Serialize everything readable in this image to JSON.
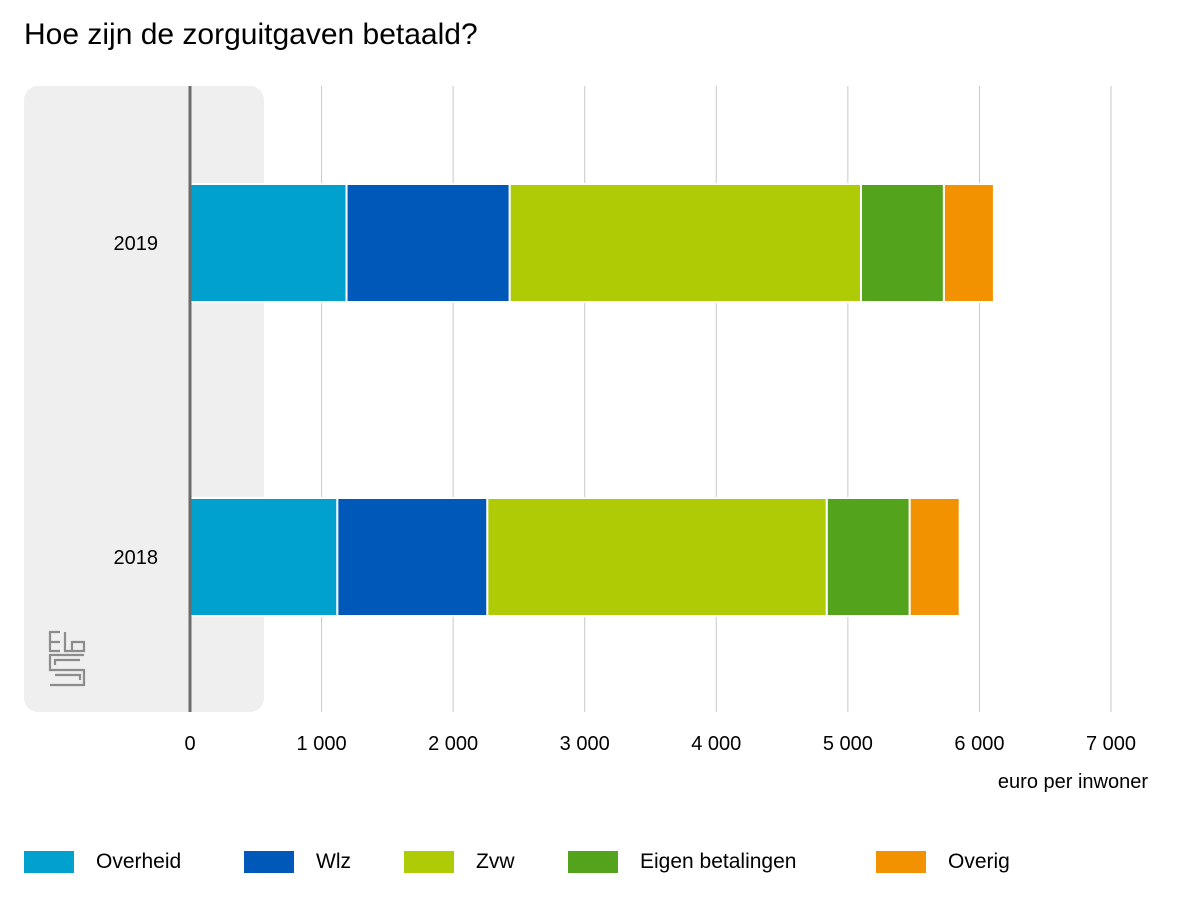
{
  "chart_data": {
    "type": "bar",
    "orientation": "horizontal",
    "stacked": true,
    "title": "Hoe zijn de zorguitgaven betaald?",
    "xlabel": "euro per inwoner",
    "ylabel": "",
    "xlim": [
      0,
      7000
    ],
    "xticks": [
      0,
      1000,
      2000,
      3000,
      4000,
      5000,
      6000,
      7000
    ],
    "xtick_labels": [
      "0",
      "1 000",
      "2 000",
      "3 000",
      "4 000",
      "5 000",
      "6 000",
      "7 000"
    ],
    "grid": true,
    "legend_position": "bottom",
    "categories": [
      "2019",
      "2018"
    ],
    "series": [
      {
        "name": "Overheid",
        "color": "#00a1cd",
        "values": [
          1190,
          1120
        ]
      },
      {
        "name": "Wlz",
        "color": "#0058b8",
        "values": [
          1240,
          1140
        ]
      },
      {
        "name": "Zvw",
        "color": "#afcb05",
        "values": [
          2670,
          2580
        ]
      },
      {
        "name": "Eigen betalingen",
        "color": "#53a31d",
        "values": [
          630,
          630
        ]
      },
      {
        "name": "Overig",
        "color": "#f39200",
        "values": [
          380,
          380
        ]
      }
    ]
  },
  "colors": {
    "panel_background": "#efefef",
    "axis_line": "#6b6b6b",
    "gridline": "#c8c8c8",
    "logo": "#8c8c8c"
  },
  "logo_icon": "cbs-logo"
}
